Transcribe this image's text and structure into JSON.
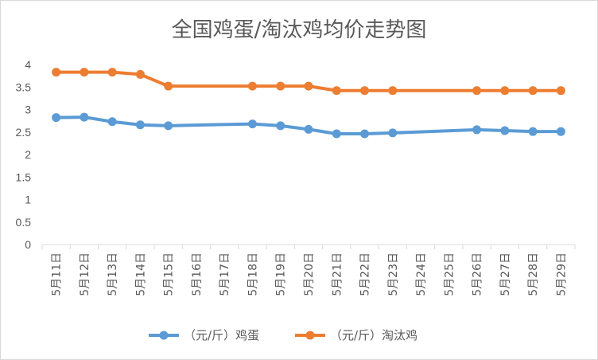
{
  "chart_data": {
    "type": "line",
    "title": "全国鸡蛋/淘汰鸡均价走势图",
    "xlabel": "",
    "ylabel": "",
    "ylim": [
      0,
      4
    ],
    "y_ticks": [
      "0",
      "0.5",
      "1",
      "1.5",
      "2",
      "2.5",
      "3",
      "3.5",
      "4"
    ],
    "categories": [
      "5月11日",
      "5月12日",
      "5月13日",
      "5月14日",
      "5月15日",
      "5月16日",
      "5月17日",
      "5月18日",
      "5月19日",
      "5月20日",
      "5月21日",
      "5月22日",
      "5月23日",
      "5月24日",
      "5月25日",
      "5月26日",
      "5月27日",
      "5月28日",
      "5月29日"
    ],
    "series": [
      {
        "name": "（元/斤）鸡蛋",
        "color": "#5b9bd5",
        "values": [
          2.82,
          2.83,
          2.73,
          2.66,
          2.64,
          null,
          null,
          2.68,
          2.64,
          2.56,
          2.46,
          2.46,
          2.48,
          null,
          null,
          2.55,
          2.53,
          2.51,
          2.51
        ]
      },
      {
        "name": "（元/斤）淘汰鸡",
        "color": "#ed7d31",
        "values": [
          3.83,
          3.83,
          3.83,
          3.78,
          3.52,
          null,
          null,
          3.52,
          3.52,
          3.52,
          3.42,
          3.42,
          3.42,
          null,
          null,
          3.42,
          3.42,
          3.42,
          3.42
        ]
      }
    ],
    "grid": false,
    "legend": "bottom"
  }
}
